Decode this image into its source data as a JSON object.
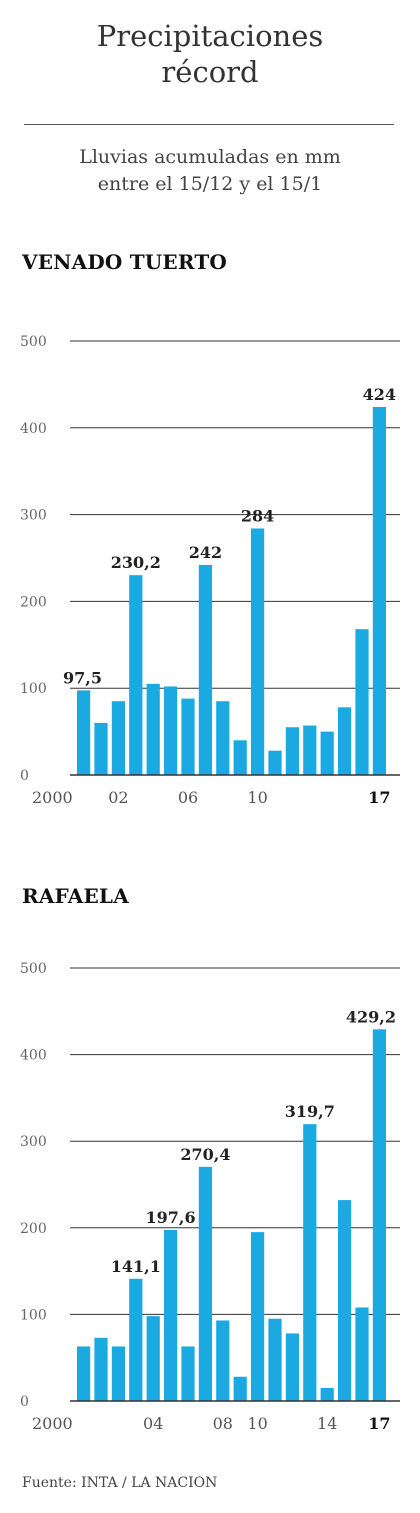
{
  "header": {
    "title_line1": "Precipitaciones",
    "title_line2": "récord",
    "subtitle_line1": "Lluvias acumuladas en mm",
    "subtitle_line2": "entre el 15/12 y el 15/1"
  },
  "source": "Fuente: INTA / LA NACION",
  "colors": {
    "bar": "#1ba9e1",
    "grid": "#333333"
  },
  "chart_data": [
    {
      "type": "bar",
      "title": "VENADO TUERTO",
      "ylim": [
        0,
        500
      ],
      "yticks": [
        "0",
        "100",
        "200",
        "300",
        "400",
        "500"
      ],
      "categories": [
        "2000",
        "2001",
        "2002",
        "2003",
        "2004",
        "2005",
        "2006",
        "2007",
        "2008",
        "2009",
        "2010",
        "2011",
        "2012",
        "2013",
        "2014",
        "2015",
        "2016",
        "2017"
      ],
      "values": [
        97.5,
        60,
        85,
        230.2,
        105,
        102,
        88,
        242,
        85,
        40,
        284,
        28,
        55,
        57,
        50,
        78,
        168,
        424
      ],
      "tick_labels": [
        {
          "i": 0,
          "text": "2000",
          "bold": false
        },
        {
          "i": 2,
          "text": "02",
          "bold": false
        },
        {
          "i": 6,
          "text": "06",
          "bold": false
        },
        {
          "i": 10,
          "text": "10",
          "bold": false
        },
        {
          "i": 17,
          "text": "17",
          "bold": true
        }
      ],
      "data_labels": [
        {
          "i": 0,
          "text": "97,5"
        },
        {
          "i": 3,
          "text": "230,2"
        },
        {
          "i": 7,
          "text": "242"
        },
        {
          "i": 10,
          "text": "284"
        },
        {
          "i": 17,
          "text": "424"
        }
      ]
    },
    {
      "type": "bar",
      "title": "RAFAELA",
      "ylim": [
        0,
        500
      ],
      "yticks": [
        "0",
        "100",
        "200",
        "300",
        "400",
        "500"
      ],
      "categories": [
        "2000",
        "2001",
        "2002",
        "2003",
        "2004",
        "2005",
        "2006",
        "2007",
        "2008",
        "2009",
        "2010",
        "2011",
        "2012",
        "2013",
        "2014",
        "2015",
        "2016",
        "2017"
      ],
      "values": [
        63,
        73,
        63,
        141.1,
        98,
        197.6,
        63,
        270.4,
        93,
        28,
        195,
        95,
        78,
        319.7,
        15,
        232,
        108,
        429.2
      ],
      "tick_labels": [
        {
          "i": 0,
          "text": "2000",
          "bold": false
        },
        {
          "i": 4,
          "text": "04",
          "bold": false
        },
        {
          "i": 8,
          "text": "08",
          "bold": false
        },
        {
          "i": 10,
          "text": "10",
          "bold": false
        },
        {
          "i": 14,
          "text": "14",
          "bold": false
        },
        {
          "i": 17,
          "text": "17",
          "bold": true
        }
      ],
      "data_labels": [
        {
          "i": 3,
          "text": "141,1"
        },
        {
          "i": 5,
          "text": "197,6"
        },
        {
          "i": 7,
          "text": "270,4"
        },
        {
          "i": 13,
          "text": "319,7"
        },
        {
          "i": 17,
          "text": "429,2"
        }
      ]
    }
  ]
}
